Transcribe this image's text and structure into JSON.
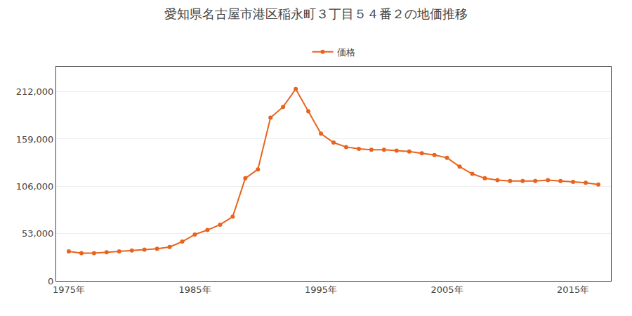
{
  "chart_data": {
    "type": "line",
    "title": "愛知県名古屋市港区稲永町３丁目５４番２の地価推移",
    "x": [
      1975,
      1976,
      1977,
      1978,
      1979,
      1980,
      1981,
      1982,
      1983,
      1984,
      1985,
      1986,
      1987,
      1988,
      1989,
      1990,
      1991,
      1992,
      1993,
      1994,
      1995,
      1996,
      1997,
      1998,
      1999,
      2000,
      2001,
      2002,
      2003,
      2004,
      2005,
      2006,
      2007,
      2008,
      2009,
      2010,
      2011,
      2012,
      2013,
      2014,
      2015,
      2016,
      2017
    ],
    "series": [
      {
        "name": "価格",
        "color": "#e8641e",
        "marker": "circle",
        "values": [
          33000,
          31000,
          31000,
          32000,
          33000,
          34000,
          35000,
          36000,
          38000,
          44000,
          52000,
          57000,
          63000,
          72000,
          115000,
          125000,
          183000,
          195000,
          215000,
          190000,
          165000,
          155000,
          150000,
          148000,
          147000,
          147000,
          146000,
          145000,
          143000,
          141000,
          138000,
          128000,
          120000,
          115000,
          113000,
          112000,
          112000,
          112000,
          113000,
          112000,
          111000,
          110000,
          108000
        ]
      }
    ],
    "xlim": [
      1974,
      2018
    ],
    "xticks": [
      {
        "value": 1975,
        "label": "1975年"
      },
      {
        "value": 1985,
        "label": "1985年"
      },
      {
        "value": 1995,
        "label": "1995年"
      },
      {
        "value": 2005,
        "label": "2005年"
      },
      {
        "value": 2015,
        "label": "2015年"
      }
    ],
    "ylim": [
      0,
      240000
    ],
    "yticks": [
      0,
      {
        "value": 53000,
        "label": "53,000"
      },
      {
        "value": 106000,
        "label": "106,000"
      },
      {
        "value": 159000,
        "label": "159,000"
      },
      {
        "value": 212000,
        "label": "212,000"
      }
    ],
    "grid": "y",
    "legend": "top"
  }
}
